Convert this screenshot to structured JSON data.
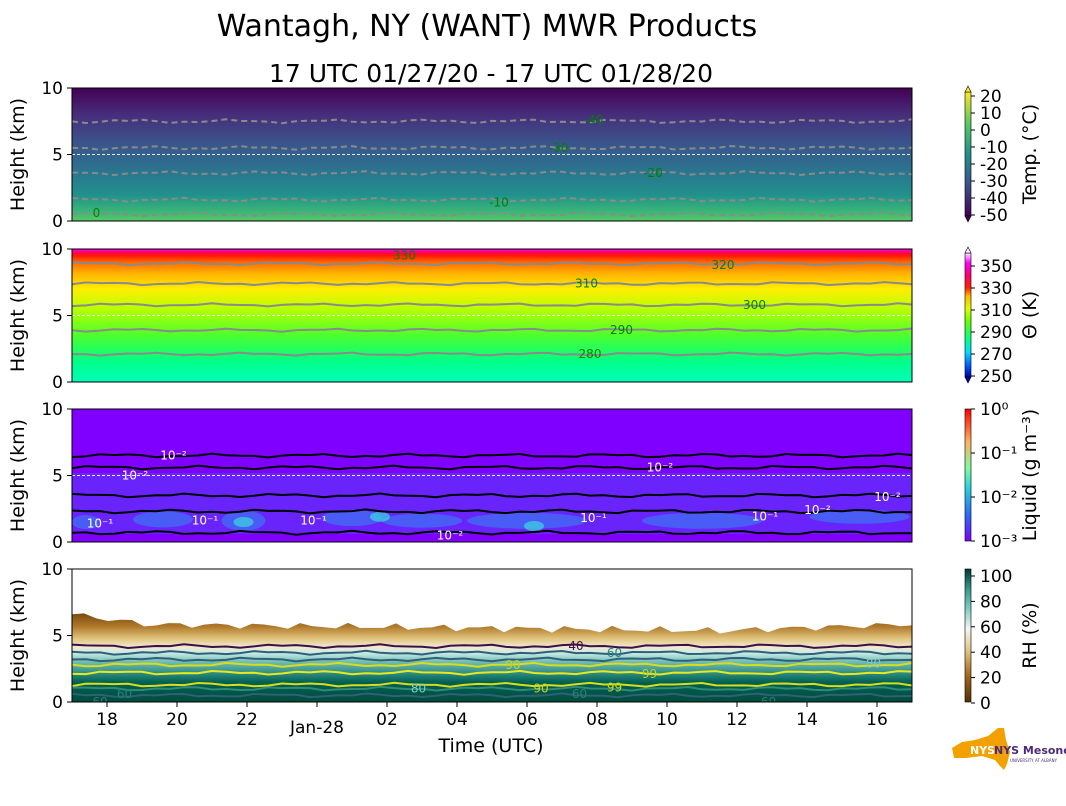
{
  "figure": {
    "title": "Wantagh, NY (WANT) MWR Products",
    "subtitle": "17 UTC 01/27/20 - 17 UTC 01/28/20",
    "xlabel": "Time (UTC)",
    "x_ticks": [
      "18",
      "20",
      "22",
      "Jan-28",
      "02",
      "04",
      "06",
      "08",
      "10",
      "12",
      "14",
      "16"
    ],
    "logo_text": "NYS Mesonet",
    "logo_subtext": "UNIVERSITY AT ALBANY"
  },
  "chart_data": [
    {
      "type": "heatmap",
      "name": "temperature",
      "ylabel": "Height (km)",
      "ylim": [
        0,
        10
      ],
      "y_ticks": [
        0,
        5,
        10
      ],
      "x_range_hours": [
        17,
        41
      ],
      "colorbar": {
        "label": "Temp. (°C)",
        "ticks": [
          "20",
          "10",
          "0",
          "-10",
          "-20",
          "-30",
          "-40",
          "-50"
        ],
        "range": [
          -50,
          20
        ]
      },
      "contours": [
        {
          "label": "0",
          "x": 17.7,
          "y": 0.6
        },
        {
          "label": "-10",
          "x": 29.2,
          "y": 1.4
        },
        {
          "label": "-20",
          "x": 33.6,
          "y": 3.6
        },
        {
          "label": "-30",
          "x": 30.9,
          "y": 5.5
        },
        {
          "label": "-40",
          "x": 31.9,
          "y": 7.6
        }
      ],
      "grid": "horizontal dashed at 5 km"
    },
    {
      "type": "heatmap",
      "name": "potential_temperature",
      "ylabel": "Height (km)",
      "ylim": [
        0,
        10
      ],
      "y_ticks": [
        0,
        5,
        10
      ],
      "colorbar": {
        "label": "Θ (K)",
        "ticks": [
          "350",
          "330",
          "310",
          "290",
          "270",
          "250"
        ],
        "range": [
          250,
          360
        ]
      },
      "contours": [
        {
          "label": "280",
          "x": 31.8,
          "y": 2.1
        },
        {
          "label": "290",
          "x": 32.7,
          "y": 3.9
        },
        {
          "label": "300",
          "x": 36.5,
          "y": 5.8
        },
        {
          "label": "310",
          "x": 31.7,
          "y": 7.4
        },
        {
          "label": "320",
          "x": 35.6,
          "y": 8.8
        },
        {
          "label": "330",
          "x": 26.5,
          "y": 9.5
        }
      ]
    },
    {
      "type": "heatmap",
      "name": "liquid_water",
      "ylabel": "Height (km)",
      "ylim": [
        0,
        10
      ],
      "y_ticks": [
        0,
        5,
        10
      ],
      "colorbar": {
        "label": "Liquid (g m⁻³)",
        "scale": "log",
        "ticks": [
          "10⁰",
          "10⁻¹",
          "10⁻²",
          "10⁻³"
        ],
        "range": [
          0.001,
          1
        ]
      },
      "contours": [
        {
          "label": "10⁻²",
          "x": 19.9,
          "y": 6.5
        },
        {
          "label": "10⁻²",
          "x": 18.8,
          "y": 5.0
        },
        {
          "label": "10⁻¹",
          "x": 17.8,
          "y": 1.4
        },
        {
          "label": "10⁻¹",
          "x": 20.8,
          "y": 1.6
        },
        {
          "label": "10⁻¹",
          "x": 23.9,
          "y": 1.6
        },
        {
          "label": "10⁻²",
          "x": 27.8,
          "y": 0.5
        },
        {
          "label": "10⁻²",
          "x": 33.8,
          "y": 5.6
        },
        {
          "label": "10⁻¹",
          "x": 31.9,
          "y": 1.8
        },
        {
          "label": "10⁻¹",
          "x": 36.8,
          "y": 1.9
        },
        {
          "label": "10⁻²",
          "x": 38.3,
          "y": 2.4
        },
        {
          "label": "10⁻²",
          "x": 40.3,
          "y": 3.4
        }
      ]
    },
    {
      "type": "heatmap",
      "name": "relative_humidity",
      "ylabel": "Height (km)",
      "ylim": [
        0,
        10
      ],
      "y_ticks": [
        0,
        5,
        10
      ],
      "colorbar": {
        "label": "RH (%)",
        "ticks": [
          "100",
          "80",
          "60",
          "40",
          "20",
          "0"
        ],
        "range": [
          0,
          105
        ]
      },
      "contours": [
        {
          "label": "40",
          "x": 31.4,
          "y": 4.2
        },
        {
          "label": "60",
          "x": 32.5,
          "y": 3.7
        },
        {
          "label": "90",
          "x": 29.6,
          "y": 2.8
        },
        {
          "label": "99",
          "x": 33.5,
          "y": 2.1
        },
        {
          "label": "99",
          "x": 32.5,
          "y": 1.1
        },
        {
          "label": "90",
          "x": 30.4,
          "y": 1.0
        },
        {
          "label": "60",
          "x": 18.5,
          "y": 0.6
        },
        {
          "label": "60",
          "x": 31.5,
          "y": 0.6
        },
        {
          "label": "60",
          "x": 17.8,
          "y": 0.0
        },
        {
          "label": "60",
          "x": 36.9,
          "y": 0.0
        },
        {
          "label": "80",
          "x": 26.9,
          "y": 1.0
        },
        {
          "label": "80",
          "x": 39.9,
          "y": 2.9
        }
      ]
    }
  ]
}
